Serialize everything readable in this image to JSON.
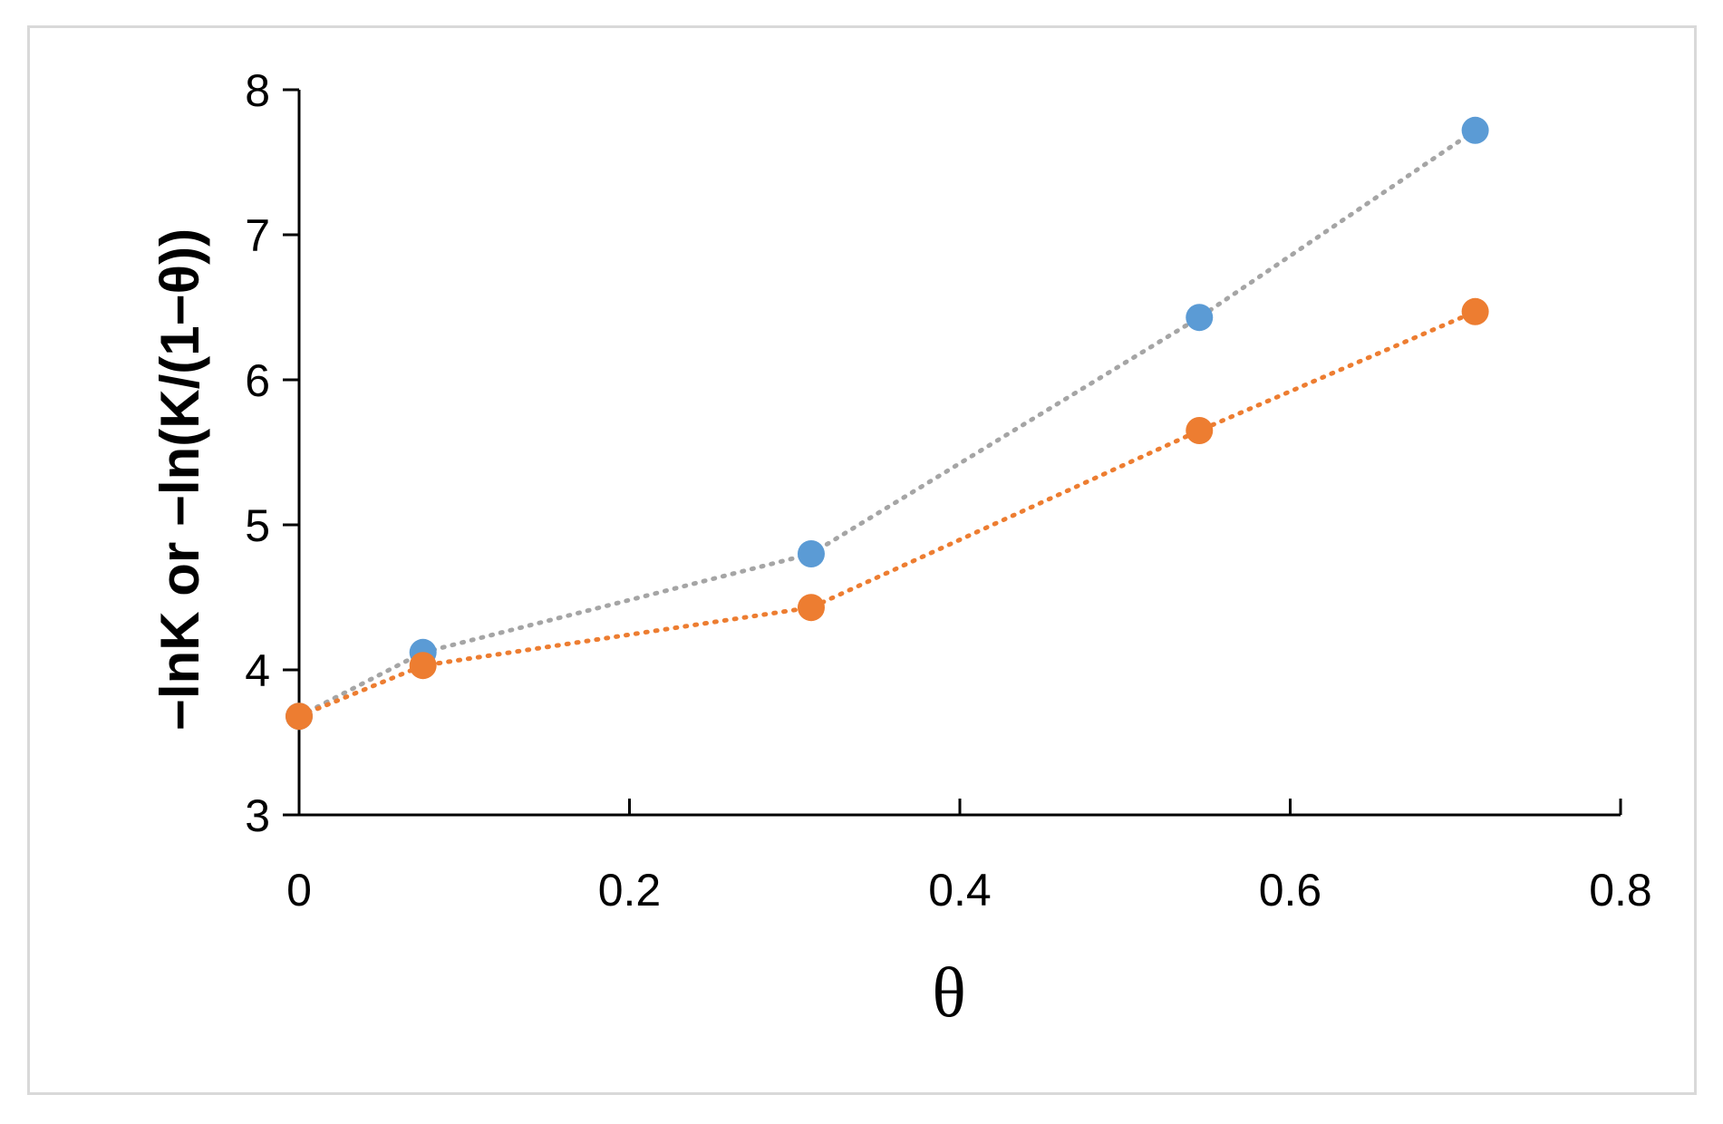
{
  "chart_data": {
    "type": "scatter",
    "title": "",
    "xlabel": "θ",
    "ylabel": "−lnK or −ln(K/(1−θ))",
    "xlim": [
      0,
      0.8
    ],
    "ylim": [
      3,
      8
    ],
    "xticks": [
      0,
      0.2,
      0.4,
      0.6,
      0.8
    ],
    "xtick_labels": [
      "0",
      "0.2",
      "0.4",
      "0.6",
      "0.8"
    ],
    "yticks": [
      3,
      4,
      5,
      6,
      7,
      8
    ],
    "ytick_labels": [
      "3",
      "4",
      "5",
      "6",
      "7",
      "8"
    ],
    "grid": false,
    "legend": "none",
    "series": [
      {
        "color": "#5b9bd5",
        "trend_color": "#a5a5a5",
        "x": [
          0,
          0.075,
          0.31,
          0.545,
          0.712
        ],
        "y": [
          3.68,
          4.12,
          4.8,
          6.43,
          7.72
        ]
      },
      {
        "color": "#ed7d31",
        "trend_color": "#ed7d31",
        "x": [
          0,
          0.075,
          0.31,
          0.545,
          0.712
        ],
        "y": [
          3.68,
          4.03,
          4.43,
          5.65,
          6.47
        ]
      }
    ]
  }
}
